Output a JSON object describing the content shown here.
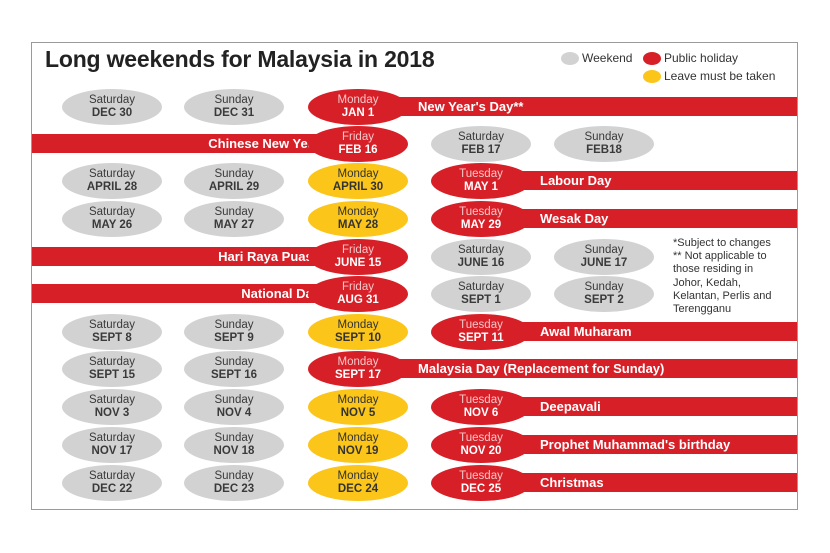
{
  "title": "Long weekends for Malaysia in 2018",
  "legend": {
    "weekend": "Weekend",
    "public_holiday": "Public holiday",
    "leave": "Leave must be taken",
    "colors": {
      "weekend": "#d2d2d2",
      "public_holiday": "#d71f27",
      "leave": "#fbc51a"
    }
  },
  "notes": [
    "*Subject to changes",
    "** Not applicable to",
    "those residing in",
    "Johor, Kedah,",
    "Kelantan, Perlis and",
    "Terengganu"
  ],
  "rows": [
    {
      "holiday": "New Year's Day**",
      "days": [
        {
          "day": "Saturday",
          "date": "DEC 30",
          "type": "weekend"
        },
        {
          "day": "Sunday",
          "date": "DEC 31",
          "type": "weekend"
        },
        {
          "day": "Monday",
          "date": "JAN 1",
          "type": "holiday"
        }
      ]
    },
    {
      "holiday": "Chinese New Year",
      "days": [
        {
          "day": "Friday",
          "date": "FEB 16",
          "type": "holiday"
        },
        {
          "day": "Saturday",
          "date": "FEB 17",
          "type": "weekend"
        },
        {
          "day": "Sunday",
          "date": "FEB18",
          "type": "weekend"
        }
      ]
    },
    {
      "holiday": "Labour Day",
      "days": [
        {
          "day": "Saturday",
          "date": "APRIL 28",
          "type": "weekend"
        },
        {
          "day": "Sunday",
          "date": "APRIL 29",
          "type": "weekend"
        },
        {
          "day": "Monday",
          "date": "APRIL 30",
          "type": "leave"
        },
        {
          "day": "Tuesday",
          "date": "MAY 1",
          "type": "holiday"
        }
      ]
    },
    {
      "holiday": "Wesak Day",
      "days": [
        {
          "day": "Saturday",
          "date": "MAY 26",
          "type": "weekend"
        },
        {
          "day": "Sunday",
          "date": "MAY 27",
          "type": "weekend"
        },
        {
          "day": "Monday",
          "date": "MAY 28",
          "type": "leave"
        },
        {
          "day": "Tuesday",
          "date": "MAY 29",
          "type": "holiday"
        }
      ]
    },
    {
      "holiday": "Hari Raya Puasa",
      "days": [
        {
          "day": "Friday",
          "date": "JUNE 15",
          "type": "holiday"
        },
        {
          "day": "Saturday",
          "date": "JUNE 16",
          "type": "weekend"
        },
        {
          "day": "Sunday",
          "date": "JUNE 17",
          "type": "weekend"
        }
      ]
    },
    {
      "holiday": "National Day",
      "days": [
        {
          "day": "Friday",
          "date": "AUG 31",
          "type": "holiday"
        },
        {
          "day": "Saturday",
          "date": "SEPT 1",
          "type": "weekend"
        },
        {
          "day": "Sunday",
          "date": "SEPT 2",
          "type": "weekend"
        }
      ]
    },
    {
      "holiday": "Awal Muharam",
      "days": [
        {
          "day": "Saturday",
          "date": "SEPT 8",
          "type": "weekend"
        },
        {
          "day": "Sunday",
          "date": "SEPT 9",
          "type": "weekend"
        },
        {
          "day": "Monday",
          "date": "SEPT 10",
          "type": "leave"
        },
        {
          "day": "Tuesday",
          "date": "SEPT 11",
          "type": "holiday"
        }
      ]
    },
    {
      "holiday": "Malaysia Day (Replacement for Sunday)",
      "days": [
        {
          "day": "Saturday",
          "date": "SEPT 15",
          "type": "weekend"
        },
        {
          "day": "Sunday",
          "date": "SEPT 16",
          "type": "weekend"
        },
        {
          "day": "Monday",
          "date": "SEPT 17",
          "type": "holiday"
        }
      ]
    },
    {
      "holiday": "Deepavali",
      "days": [
        {
          "day": "Saturday",
          "date": "NOV 3",
          "type": "weekend"
        },
        {
          "day": "Sunday",
          "date": "NOV 4",
          "type": "weekend"
        },
        {
          "day": "Monday",
          "date": "NOV 5",
          "type": "leave"
        },
        {
          "day": "Tuesday",
          "date": "NOV 6",
          "type": "holiday"
        }
      ]
    },
    {
      "holiday": "Prophet Muhammad's birthday",
      "days": [
        {
          "day": "Saturday",
          "date": "NOV 17",
          "type": "weekend"
        },
        {
          "day": "Sunday",
          "date": "NOV 18",
          "type": "weekend"
        },
        {
          "day": "Monday",
          "date": "NOV 19",
          "type": "leave"
        },
        {
          "day": "Tuesday",
          "date": "NOV 20",
          "type": "holiday"
        }
      ]
    },
    {
      "holiday": "Christmas",
      "days": [
        {
          "day": "Saturday",
          "date": "DEC 22",
          "type": "weekend"
        },
        {
          "day": "Sunday",
          "date": "DEC 23",
          "type": "weekend"
        },
        {
          "day": "Monday",
          "date": "DEC 24",
          "type": "leave"
        },
        {
          "day": "Tuesday",
          "date": "DEC 25",
          "type": "holiday"
        }
      ]
    }
  ]
}
